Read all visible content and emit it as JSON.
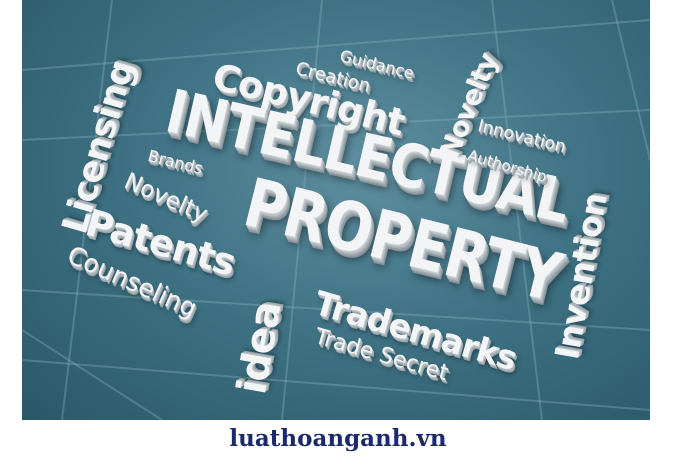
{
  "words": {
    "guidance": "Guidance",
    "creation": "Creation",
    "copyright": "Copyright",
    "licensing": "Licensing",
    "intellectual": "INTELLECTUAL",
    "novelty_right": "Novelty",
    "innovation": "Innovation",
    "authorship": "Authorship",
    "brands": "Brands",
    "novelty_left": "Novelty",
    "property": "PROPERTY",
    "invention": "Invention",
    "patents": "Patents",
    "counseling": "Counseling",
    "idea": "idea",
    "trademarks": "Trademarks",
    "trade_secret": "Trade Secret"
  },
  "footer": {
    "site": "luathoanganh.vn"
  },
  "colors": {
    "background": "#3f7385",
    "letters": "#f2f4f5",
    "footer_text": "#1c2a6b"
  }
}
